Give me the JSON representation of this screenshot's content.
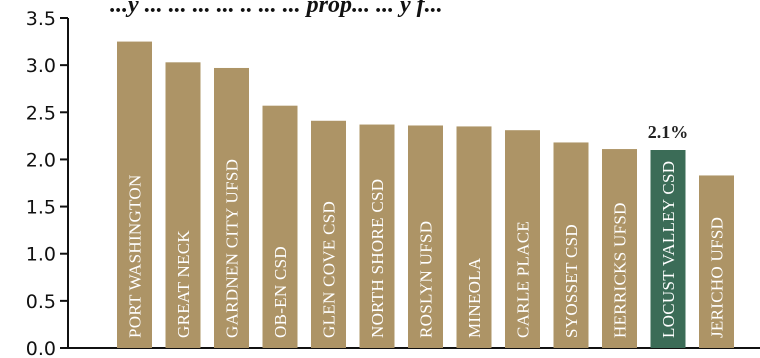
{
  "chart_data": {
    "type": "bar",
    "title": "...y ... ... ... ... .. ... ... prop... ... y f...",
    "categories": [
      "PORT WASHINGTON",
      "GREAT NECK",
      "GARDNEN CITY UFSD",
      "OB-EN CSD",
      "GLEN COVE CSD",
      "NORTH SHORE CSD",
      "ROSLYN UFSD",
      "MINEOLA",
      "CARLE PLACE",
      "SYOSSET CSD",
      "HERRICKS UFSD",
      "LOCUST VALLEY CSD",
      "JERICHO UFSD"
    ],
    "values": [
      3.25,
      3.03,
      2.97,
      2.57,
      2.41,
      2.37,
      2.36,
      2.35,
      2.31,
      2.18,
      2.11,
      2.1,
      1.83
    ],
    "highlight_index": 11,
    "highlight_label": "2.1%",
    "ylim": [
      0,
      3.5
    ],
    "yticks": [
      "0.0",
      "0.5",
      "1.0",
      "1.5",
      "2.0",
      "2.5",
      "3.0",
      "3.5"
    ],
    "xlabel": "",
    "ylabel": "",
    "colors": {
      "bar": "#ad9466",
      "highlight": "#3b6c57",
      "axis": "#111111"
    }
  }
}
